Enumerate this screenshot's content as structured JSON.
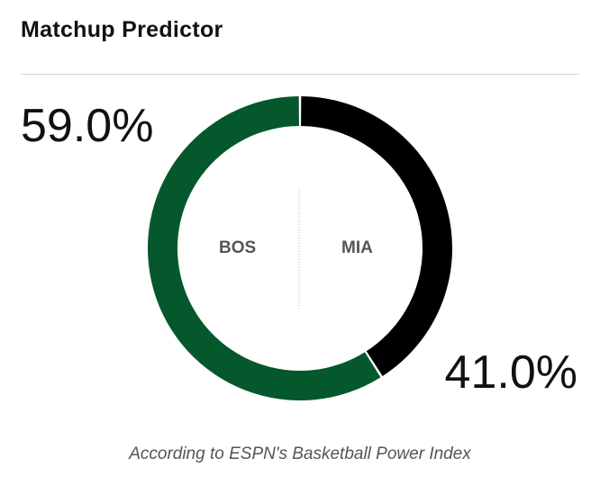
{
  "header": {
    "title": "Matchup Predictor"
  },
  "footnote": "According to ESPN's Basketball Power Index",
  "colors": {
    "home": "#04582c",
    "away": "#000000",
    "divider": "#d6d6d6",
    "center_line": "#b8b8b8"
  },
  "chart_data": {
    "type": "pie",
    "title": "Matchup Predictor",
    "series": [
      {
        "name": "BOS",
        "value": 59.0,
        "label": "59.0%",
        "color": "#04582c"
      },
      {
        "name": "MIA",
        "value": 41.0,
        "label": "41.0%",
        "color": "#000000"
      }
    ],
    "donut": true,
    "annotation": "According to ESPN's Basketball Power Index"
  }
}
